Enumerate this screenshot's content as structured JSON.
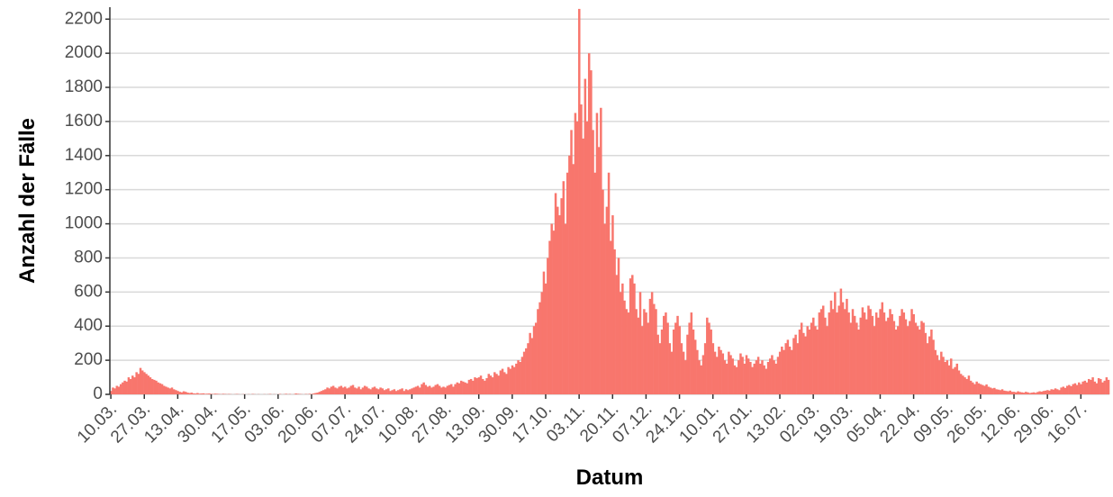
{
  "chart_data": {
    "type": "bar",
    "x_label": "Datum",
    "y_label": "Anzahl der Fälle",
    "color": "#f8766d",
    "ylim": [
      0,
      2270
    ],
    "yticks": [
      0,
      200,
      400,
      600,
      800,
      1000,
      1200,
      1400,
      1600,
      1800,
      2000,
      2200
    ],
    "grid": true,
    "categories": [
      "10.03.",
      null,
      null,
      null,
      null,
      null,
      null,
      null,
      null,
      null,
      null,
      null,
      null,
      null,
      null,
      null,
      null,
      "27.03.",
      null,
      null,
      null,
      null,
      null,
      null,
      null,
      null,
      null,
      null,
      null,
      null,
      null,
      null,
      null,
      null,
      "13.04.",
      null,
      null,
      null,
      null,
      null,
      null,
      null,
      null,
      null,
      null,
      null,
      null,
      null,
      null,
      null,
      null,
      "30.04.",
      null,
      null,
      null,
      null,
      null,
      null,
      null,
      null,
      null,
      null,
      null,
      null,
      null,
      null,
      null,
      null,
      "17.05.",
      null,
      null,
      null,
      null,
      null,
      null,
      null,
      null,
      null,
      null,
      null,
      null,
      null,
      null,
      null,
      null,
      "03.06.",
      null,
      null,
      null,
      null,
      null,
      null,
      null,
      null,
      null,
      null,
      null,
      null,
      null,
      null,
      null,
      null,
      "20.06.",
      null,
      null,
      null,
      null,
      null,
      null,
      null,
      null,
      null,
      null,
      null,
      null,
      null,
      null,
      null,
      null,
      "07.07.",
      null,
      null,
      null,
      null,
      null,
      null,
      null,
      null,
      null,
      null,
      null,
      null,
      null,
      null,
      null,
      null,
      "24.07.",
      null,
      null,
      null,
      null,
      null,
      null,
      null,
      null,
      null,
      null,
      null,
      null,
      null,
      null,
      null,
      null,
      "10.08.",
      null,
      null,
      null,
      null,
      null,
      null,
      null,
      null,
      null,
      null,
      null,
      null,
      null,
      null,
      null,
      null,
      "27.08.",
      null,
      null,
      null,
      null,
      null,
      null,
      null,
      null,
      null,
      null,
      null,
      null,
      null,
      null,
      null,
      null,
      "13.09.",
      null,
      null,
      null,
      null,
      null,
      null,
      null,
      null,
      null,
      null,
      null,
      null,
      null,
      null,
      null,
      null,
      "30.09.",
      null,
      null,
      null,
      null,
      null,
      null,
      null,
      null,
      null,
      null,
      null,
      null,
      null,
      null,
      null,
      null,
      "17.10.",
      null,
      null,
      null,
      null,
      null,
      null,
      null,
      null,
      null,
      null,
      null,
      null,
      null,
      null,
      null,
      null,
      "03.11.",
      null,
      null,
      null,
      null,
      null,
      null,
      null,
      null,
      null,
      null,
      null,
      null,
      null,
      null,
      null,
      null,
      "20.11.",
      null,
      null,
      null,
      null,
      null,
      null,
      null,
      null,
      null,
      null,
      null,
      null,
      null,
      null,
      null,
      null,
      "07.12.",
      null,
      null,
      null,
      null,
      null,
      null,
      null,
      null,
      null,
      null,
      null,
      null,
      null,
      null,
      null,
      null,
      "24.12.",
      null,
      null,
      null,
      null,
      null,
      null,
      null,
      null,
      null,
      null,
      null,
      null,
      null,
      null,
      null,
      null,
      "10.01.",
      null,
      null,
      null,
      null,
      null,
      null,
      null,
      null,
      null,
      null,
      null,
      null,
      null,
      null,
      null,
      null,
      "27.01.",
      null,
      null,
      null,
      null,
      null,
      null,
      null,
      null,
      null,
      null,
      null,
      null,
      null,
      null,
      null,
      null,
      "13.02.",
      null,
      null,
      null,
      null,
      null,
      null,
      null,
      null,
      null,
      null,
      null,
      null,
      null,
      null,
      null,
      null,
      "02.03.",
      null,
      null,
      null,
      null,
      null,
      null,
      null,
      null,
      null,
      null,
      null,
      null,
      null,
      null,
      null,
      null,
      "19.03.",
      null,
      null,
      null,
      null,
      null,
      null,
      null,
      null,
      null,
      null,
      null,
      null,
      null,
      null,
      null,
      null,
      "05.04.",
      null,
      null,
      null,
      null,
      null,
      null,
      null,
      null,
      null,
      null,
      null,
      null,
      null,
      null,
      null,
      null,
      "22.04.",
      null,
      null,
      null,
      null,
      null,
      null,
      null,
      null,
      null,
      null,
      null,
      null,
      null,
      null,
      null,
      null,
      "09.05.",
      null,
      null,
      null,
      null,
      null,
      null,
      null,
      null,
      null,
      null,
      null,
      null,
      null,
      null,
      null,
      null,
      "26.05.",
      null,
      null,
      null,
      null,
      null,
      null,
      null,
      null,
      null,
      null,
      null,
      null,
      null,
      null,
      null,
      null,
      "12.06.",
      null,
      null,
      null,
      null,
      null,
      null,
      null,
      null,
      null,
      null,
      null,
      null,
      null,
      null,
      null,
      null,
      "29.06.",
      null,
      null,
      null,
      null,
      null,
      null,
      null,
      null,
      null,
      null,
      null,
      null,
      null,
      null,
      null,
      null,
      "16.07.",
      null,
      null,
      null,
      null,
      null,
      null,
      null,
      null,
      null,
      null,
      null,
      null,
      null,
      null
    ],
    "values": [
      20,
      40,
      35,
      50,
      45,
      60,
      70,
      80,
      75,
      100,
      90,
      110,
      100,
      130,
      120,
      155,
      140,
      130,
      120,
      110,
      100,
      90,
      85,
      80,
      70,
      65,
      60,
      50,
      45,
      40,
      35,
      40,
      30,
      25,
      20,
      15,
      12,
      18,
      15,
      10,
      8,
      10,
      6,
      5,
      8,
      4,
      5,
      6,
      3,
      4,
      5,
      3,
      2,
      4,
      3,
      2,
      1,
      3,
      2,
      1,
      2,
      1,
      0,
      1,
      2,
      1,
      0,
      1,
      1,
      0,
      1,
      0,
      2,
      1,
      0,
      1,
      0,
      0,
      1,
      0,
      1,
      2,
      0,
      1,
      0,
      1,
      2,
      0,
      1,
      3,
      1,
      2,
      0,
      1,
      5,
      3,
      2,
      1,
      0,
      2,
      1,
      3,
      2,
      5,
      8,
      10,
      15,
      20,
      25,
      30,
      40,
      35,
      45,
      50,
      40,
      35,
      45,
      50,
      40,
      45,
      35,
      40,
      50,
      55,
      40,
      35,
      45,
      30,
      40,
      50,
      45,
      35,
      30,
      40,
      45,
      35,
      30,
      40,
      35,
      25,
      30,
      35,
      20,
      25,
      30,
      20,
      25,
      30,
      35,
      20,
      30,
      25,
      30,
      35,
      40,
      45,
      50,
      40,
      60,
      70,
      55,
      45,
      50,
      40,
      45,
      55,
      60,
      50,
      40,
      45,
      40,
      50,
      55,
      60,
      45,
      60,
      70,
      65,
      80,
      75,
      70,
      65,
      85,
      90,
      80,
      100,
      95,
      100,
      110,
      90,
      80,
      95,
      120,
      110,
      100,
      130,
      120,
      110,
      140,
      150,
      130,
      120,
      160,
      150,
      170,
      160,
      180,
      200,
      190,
      220,
      250,
      270,
      300,
      360,
      330,
      400,
      420,
      500,
      540,
      600,
      720,
      650,
      800,
      900,
      1000,
      960,
      1180,
      1100,
      1050,
      1150,
      1250,
      1000,
      1300,
      1400,
      1550,
      1350,
      1650,
      1600,
      2260,
      1700,
      1500,
      1850,
      1600,
      2000,
      1900,
      1550,
      1300,
      1650,
      1450,
      1680,
      1200,
      1000,
      1100,
      1300,
      900,
      1050,
      850,
      700,
      800,
      600,
      650,
      550,
      500,
      480,
      680,
      700,
      650,
      500,
      450,
      600,
      400,
      500,
      480,
      420,
      560,
      600,
      530,
      500,
      350,
      300,
      380,
      460,
      480,
      420,
      300,
      250,
      380,
      420,
      460,
      400,
      300,
      250,
      200,
      350,
      420,
      480,
      380,
      320,
      260,
      200,
      170,
      230,
      300,
      450,
      420,
      380,
      300,
      250,
      220,
      280,
      260,
      240,
      200,
      180,
      250,
      230,
      210,
      170,
      160,
      200,
      240,
      220,
      180,
      230,
      210,
      190,
      160,
      180,
      200,
      220,
      180,
      200,
      170,
      150,
      190,
      210,
      230,
      200,
      180,
      220,
      250,
      280,
      260,
      300,
      320,
      280,
      260,
      330,
      350,
      300,
      380,
      420,
      360,
      340,
      400,
      380,
      420,
      450,
      400,
      380,
      480,
      500,
      520,
      450,
      400,
      480,
      550,
      500,
      600,
      480,
      520,
      620,
      540,
      500,
      560,
      480,
      420,
      500,
      460,
      420,
      380,
      450,
      510,
      480,
      440,
      520,
      500,
      460,
      400,
      480,
      450,
      500,
      540,
      480,
      430,
      450,
      500,
      470,
      430,
      380,
      400,
      460,
      500,
      480,
      440,
      400,
      430,
      500,
      470,
      420,
      400,
      380,
      430,
      420,
      360,
      300,
      340,
      380,
      320,
      260,
      230,
      200,
      250,
      220,
      190,
      200,
      170,
      210,
      150,
      160,
      180,
      140,
      120,
      110,
      100,
      90,
      110,
      80,
      70,
      60,
      75,
      65,
      60,
      55,
      50,
      58,
      45,
      40,
      35,
      38,
      30,
      28,
      25,
      30,
      22,
      20,
      18,
      22,
      15,
      15,
      12,
      18,
      14,
      12,
      10,
      15,
      12,
      8,
      10,
      12,
      9,
      14,
      18,
      16,
      20,
      22,
      25,
      22,
      30,
      28,
      35,
      30,
      25,
      40,
      45,
      38,
      50,
      55,
      48,
      60,
      65,
      55,
      70,
      60,
      75,
      80,
      70,
      90,
      85,
      100,
      75,
      65,
      95,
      90,
      70,
      80,
      100,
      85
    ]
  }
}
